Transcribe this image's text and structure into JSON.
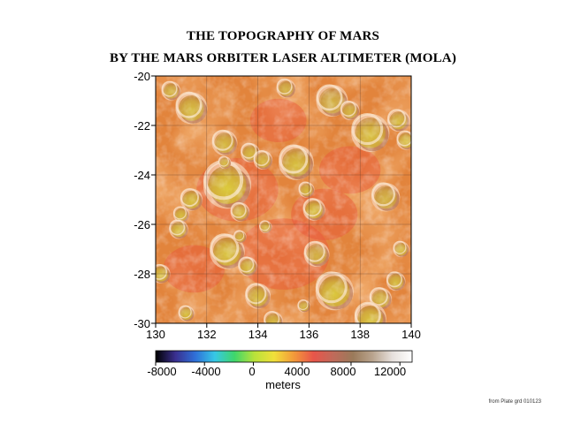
{
  "title_line1": "THE TOPOGRAPHY OF MARS",
  "title_line2": "BY THE MARS ORBITER LASER ALTIMETER (MOLA)",
  "map": {
    "x_ticks": [
      "130",
      "132",
      "134",
      "136",
      "138",
      "140"
    ],
    "y_ticks": [
      "-20",
      "-22",
      "-24",
      "-26",
      "-28",
      "-30"
    ],
    "x_range": [
      130,
      140
    ],
    "y_range": [
      -30,
      -20
    ],
    "grid": true,
    "palette": {
      "low": "#e8553a",
      "mid": "#e2843c",
      "high": "#d4a03a",
      "peak": "#d6cc3a"
    }
  },
  "colorbar": {
    "ticks": [
      "-8000",
      "-4000",
      "0",
      "4000",
      "8000",
      "12000"
    ],
    "units": "meters",
    "range": [
      -8000,
      13000
    ],
    "stops": [
      "#000000",
      "#3a2f8f",
      "#2f6fd8",
      "#36c8e6",
      "#3fd66a",
      "#b8e23a",
      "#f1e03a",
      "#f39a3a",
      "#e8554a",
      "#c06a5a",
      "#9a7a5a",
      "#b9a48e",
      "#e6e0dc",
      "#ffffff"
    ]
  },
  "footer": "from Plate grd 010123",
  "craters": [
    {
      "lon": 131.4,
      "lat": -21.3,
      "r": 0.5,
      "yellow": 0.6
    },
    {
      "lon": 130.6,
      "lat": -20.6,
      "r": 0.3,
      "yellow": 0.4
    },
    {
      "lon": 132.7,
      "lat": -22.7,
      "r": 0.4,
      "yellow": 0.5
    },
    {
      "lon": 133.7,
      "lat": -23.1,
      "r": 0.3,
      "yellow": 0.5
    },
    {
      "lon": 135.5,
      "lat": -23.5,
      "r": 0.55,
      "yellow": 0.7
    },
    {
      "lon": 132.8,
      "lat": -24.4,
      "r": 0.75,
      "yellow": 1.0
    },
    {
      "lon": 132.7,
      "lat": -23.5,
      "r": 0.2,
      "yellow": 0.5
    },
    {
      "lon": 134.2,
      "lat": -23.4,
      "r": 0.3,
      "yellow": 0.5
    },
    {
      "lon": 138.4,
      "lat": -22.3,
      "r": 0.6,
      "yellow": 0.7
    },
    {
      "lon": 139.5,
      "lat": -21.8,
      "r": 0.35,
      "yellow": 0.6
    },
    {
      "lon": 139.8,
      "lat": -22.6,
      "r": 0.3,
      "yellow": 0.7
    },
    {
      "lon": 136.9,
      "lat": -21.0,
      "r": 0.5,
      "yellow": 0.3
    },
    {
      "lon": 135.1,
      "lat": -20.5,
      "r": 0.3,
      "yellow": 0.3
    },
    {
      "lon": 137.6,
      "lat": -21.4,
      "r": 0.3,
      "yellow": 0.4
    },
    {
      "lon": 131.4,
      "lat": -25.0,
      "r": 0.35,
      "yellow": 0.7
    },
    {
      "lon": 131.0,
      "lat": -25.6,
      "r": 0.25,
      "yellow": 0.6
    },
    {
      "lon": 130.9,
      "lat": -26.2,
      "r": 0.3,
      "yellow": 0.7
    },
    {
      "lon": 133.3,
      "lat": -25.5,
      "r": 0.3,
      "yellow": 0.6
    },
    {
      "lon": 134.3,
      "lat": -26.1,
      "r": 0.2,
      "yellow": 0.5
    },
    {
      "lon": 136.2,
      "lat": -25.4,
      "r": 0.35,
      "yellow": 0.7
    },
    {
      "lon": 135.9,
      "lat": -24.6,
      "r": 0.25,
      "yellow": 0.5
    },
    {
      "lon": 139.0,
      "lat": -24.9,
      "r": 0.45,
      "yellow": 0.3
    },
    {
      "lon": 132.8,
      "lat": -27.1,
      "r": 0.55,
      "yellow": 0.8
    },
    {
      "lon": 133.6,
      "lat": -27.7,
      "r": 0.3,
      "yellow": 0.6
    },
    {
      "lon": 133.3,
      "lat": -26.5,
      "r": 0.2,
      "yellow": 0.4
    },
    {
      "lon": 134.0,
      "lat": -28.9,
      "r": 0.4,
      "yellow": 0.6
    },
    {
      "lon": 137.0,
      "lat": -28.7,
      "r": 0.6,
      "yellow": 0.9
    },
    {
      "lon": 138.8,
      "lat": -29.0,
      "r": 0.35,
      "yellow": 0.5
    },
    {
      "lon": 138.4,
      "lat": -29.8,
      "r": 0.5,
      "yellow": 0.8
    },
    {
      "lon": 131.2,
      "lat": -29.6,
      "r": 0.25,
      "yellow": 0.7
    },
    {
      "lon": 130.2,
      "lat": -28.0,
      "r": 0.3,
      "yellow": 0.7
    },
    {
      "lon": 136.3,
      "lat": -27.2,
      "r": 0.4,
      "yellow": 0.3
    },
    {
      "lon": 139.6,
      "lat": -27.0,
      "r": 0.25,
      "yellow": 0.6
    },
    {
      "lon": 139.4,
      "lat": -28.3,
      "r": 0.3,
      "yellow": 0.6
    },
    {
      "lon": 134.6,
      "lat": -29.9,
      "r": 0.3,
      "yellow": 0.5
    },
    {
      "lon": 135.8,
      "lat": -29.3,
      "r": 0.2,
      "yellow": 0.4
    }
  ]
}
